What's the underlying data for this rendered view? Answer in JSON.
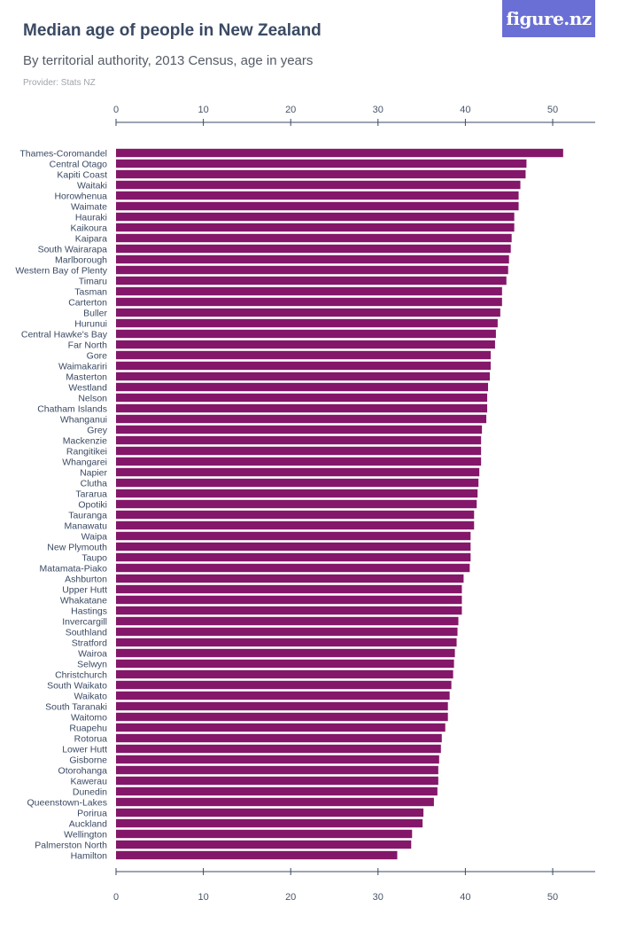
{
  "header": {
    "title": "Median age of people in New Zealand",
    "subtitle": "By territorial authority, 2013 Census, age in years",
    "provider": "Provider: Stats NZ",
    "logo_text": "figure.nz"
  },
  "colors": {
    "bar": "#841769",
    "logo_bg": "#6a6fd6",
    "axis": "#3a4a63"
  },
  "chart_data": {
    "type": "bar",
    "orientation": "horizontal",
    "title": "Median age of people in New Zealand",
    "subtitle": "By territorial authority, 2013 Census, age in years",
    "xlim": [
      0,
      55
    ],
    "xticks": [
      0,
      10,
      20,
      30,
      40,
      50
    ],
    "grid": false,
    "categories": [
      "Thames-Coromandel",
      "Central Otago",
      "Kapiti Coast",
      "Waitaki",
      "Horowhenua",
      "Waimate",
      "Hauraki",
      "Kaikoura",
      "Kaipara",
      "South Wairarapa",
      "Marlborough",
      "Western Bay of Plenty",
      "Timaru",
      "Tasman",
      "Carterton",
      "Buller",
      "Hurunui",
      "Central Hawke's Bay",
      "Far North",
      "Gore",
      "Waimakariri",
      "Masterton",
      "Westland",
      "Nelson",
      "Chatham Islands",
      "Whanganui",
      "Grey",
      "Mackenzie",
      "Rangitikei",
      "Whangarei",
      "Napier",
      "Clutha",
      "Tararua",
      "Opotiki",
      "Tauranga",
      "Manawatu",
      "Waipa",
      "New Plymouth",
      "Taupo",
      "Matamata-Piako",
      "Ashburton",
      "Upper Hutt",
      "Whakatane",
      "Hastings",
      "Invercargill",
      "Southland",
      "Stratford",
      "Wairoa",
      "Selwyn",
      "Christchurch",
      "South Waikato",
      "Waikato",
      "South Taranaki",
      "Waitomo",
      "Ruapehu",
      "Rotorua",
      "Lower Hutt",
      "Gisborne",
      "Otorohanga",
      "Kawerau",
      "Dunedin",
      "Queenstown-Lakes",
      "Porirua",
      "Auckland",
      "Wellington",
      "Palmerston North",
      "Hamilton"
    ],
    "values": [
      51.2,
      47.0,
      46.9,
      46.3,
      46.1,
      46.1,
      45.6,
      45.6,
      45.3,
      45.2,
      45.0,
      44.9,
      44.7,
      44.2,
      44.2,
      44.0,
      43.7,
      43.5,
      43.4,
      42.9,
      42.9,
      42.8,
      42.6,
      42.5,
      42.5,
      42.4,
      41.9,
      41.8,
      41.8,
      41.8,
      41.6,
      41.5,
      41.4,
      41.3,
      41.0,
      41.0,
      40.6,
      40.6,
      40.6,
      40.5,
      39.8,
      39.6,
      39.6,
      39.6,
      39.2,
      39.1,
      39.0,
      38.8,
      38.7,
      38.6,
      38.4,
      38.2,
      38.0,
      38.0,
      37.7,
      37.3,
      37.2,
      37.0,
      36.9,
      36.9,
      36.8,
      36.4,
      35.2,
      35.1,
      33.9,
      33.8,
      32.2
    ]
  }
}
